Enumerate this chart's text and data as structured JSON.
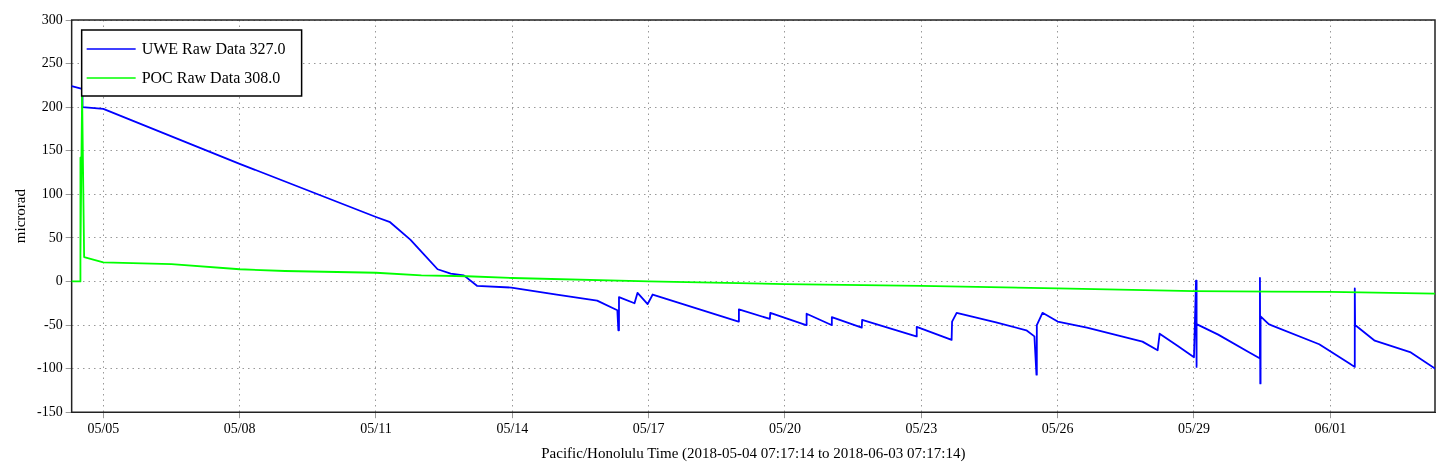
{
  "chart_data": {
    "type": "line",
    "xlabel": "Pacific/Honolulu Time (2018-05-04 07:17:14 to 2018-06-03 07:17:14)",
    "ylabel": "microrad",
    "xlim": [
      "2018-05-04T07:17",
      "2018-06-03T07:17"
    ],
    "xticks": [
      {
        "value": "2018-05-05",
        "label": "05/05"
      },
      {
        "value": "2018-05-08",
        "label": "05/08"
      },
      {
        "value": "2018-05-11",
        "label": "05/11"
      },
      {
        "value": "2018-05-14",
        "label": "05/14"
      },
      {
        "value": "2018-05-17",
        "label": "05/17"
      },
      {
        "value": "2018-05-20",
        "label": "05/20"
      },
      {
        "value": "2018-05-23",
        "label": "05/23"
      },
      {
        "value": "2018-05-26",
        "label": "05/26"
      },
      {
        "value": "2018-05-29",
        "label": "05/29"
      },
      {
        "value": "2018-06-01",
        "label": "06/01"
      }
    ],
    "ylim": [
      -150,
      300
    ],
    "yticks": [
      -150,
      -100,
      -50,
      0,
      50,
      100,
      150,
      200,
      250,
      300
    ],
    "grid": true,
    "legend": "top left",
    "marker": "none",
    "line_style": "solid",
    "series": [
      {
        "name": "UWE Raw Data 327.0",
        "color": "#0000ff",
        "x": [
          "2018-05-04T07:17",
          "2018-05-04T12:48",
          "2018-05-04T13:00",
          "2018-05-05T00:00",
          "2018-05-08T00:00",
          "2018-05-11T00:00",
          "2018-05-11T07:28",
          "2018-05-11T18:08",
          "2018-05-12T08:32",
          "2018-05-12T15:28",
          "2018-05-12T22:24",
          "2018-05-13T05:20",
          "2018-05-13T23:28",
          "2018-05-14T23:28",
          "2018-05-15T20:48",
          "2018-05-16T07:28",
          "2018-05-16T08:00",
          "2018-05-16T08:20",
          "2018-05-16T16:32",
          "2018-05-16T18:08",
          "2018-05-16T23:28",
          "2018-05-17T02:08",
          "2018-05-18T23:28",
          "2018-05-18T23:40",
          "2018-05-19T16:00",
          "2018-05-19T16:15",
          "2018-05-20T11:12",
          "2018-05-20T11:25",
          "2018-05-21T00:32",
          "2018-05-21T00:45",
          "2018-05-21T16:32",
          "2018-05-21T16:45",
          "2018-05-22T21:20",
          "2018-05-22T21:35",
          "2018-05-23T16:00",
          "2018-05-23T16:15",
          "2018-05-23T18:40",
          "2018-05-24T15:28",
          "2018-05-25T07:28",
          "2018-05-25T11:44",
          "2018-05-25T12:48",
          "2018-05-25T13:00",
          "2018-05-25T16:00",
          "2018-05-26T00:00",
          "2018-05-26T15:28",
          "2018-05-27T20:48",
          "2018-05-28T04:48",
          "2018-05-28T05:52",
          "2018-05-28T15:28",
          "2018-05-29T00:00",
          "2018-05-29T01:04",
          "2018-05-29T01:15",
          "2018-05-29T01:30",
          "2018-05-29T12:48",
          "2018-05-30T04:48",
          "2018-05-30T10:40",
          "2018-05-30T10:50",
          "2018-05-30T11:00",
          "2018-05-30T11:10",
          "2018-05-30T15:28",
          "2018-05-31T18:08",
          "2018-06-01T10:08",
          "2018-06-01T12:48",
          "2018-06-01T12:55",
          "2018-06-01T13:05",
          "2018-06-01T23:28",
          "2018-06-02T18:08",
          "2018-06-03T07:17"
        ],
        "values": [
          224,
          221,
          200,
          198,
          135,
          74,
          68,
          48,
          14,
          9,
          7,
          -5,
          -7,
          -15,
          -22,
          -33,
          -56,
          -18,
          -25,
          -13,
          -26,
          -15,
          -46,
          -32,
          -43,
          -36,
          -50,
          -37,
          -50,
          -41,
          -53,
          -44,
          -63,
          -52,
          -67,
          -46,
          -36,
          -47,
          -56,
          -63,
          -107,
          -50,
          -36,
          -46,
          -53,
          -69,
          -79,
          -60,
          -74,
          -87,
          1,
          -98,
          -49,
          -61,
          -81,
          -88,
          4,
          -117,
          -40,
          -49,
          -72,
          -94,
          -98,
          -8,
          -50,
          -68,
          -81,
          -100
        ]
      },
      {
        "name": "POC Raw Data 308.0",
        "color": "#00ff00",
        "x": [
          "2018-05-04T07:17",
          "2018-05-04T11:44",
          "2018-05-04T11:50",
          "2018-05-04T12:00",
          "2018-05-04T12:48",
          "2018-05-04T13:52",
          "2018-05-05T00:00",
          "2018-05-06T12:00",
          "2018-05-08T00:00",
          "2018-05-09T00:00",
          "2018-05-11T00:00",
          "2018-05-12T00:00",
          "2018-05-13T00:00",
          "2018-05-14T00:00",
          "2018-05-17T00:00",
          "2018-05-20T00:00",
          "2018-05-23T00:00",
          "2018-05-26T00:00",
          "2018-05-29T00:00",
          "2018-06-01T00:00",
          "2018-06-03T07:17"
        ],
        "values": [
          0,
          0,
          142,
          30,
          215,
          28,
          22,
          20,
          14,
          12,
          10,
          7,
          6,
          4,
          0,
          -3,
          -5,
          -8,
          -11,
          -12,
          -14
        ]
      }
    ]
  }
}
